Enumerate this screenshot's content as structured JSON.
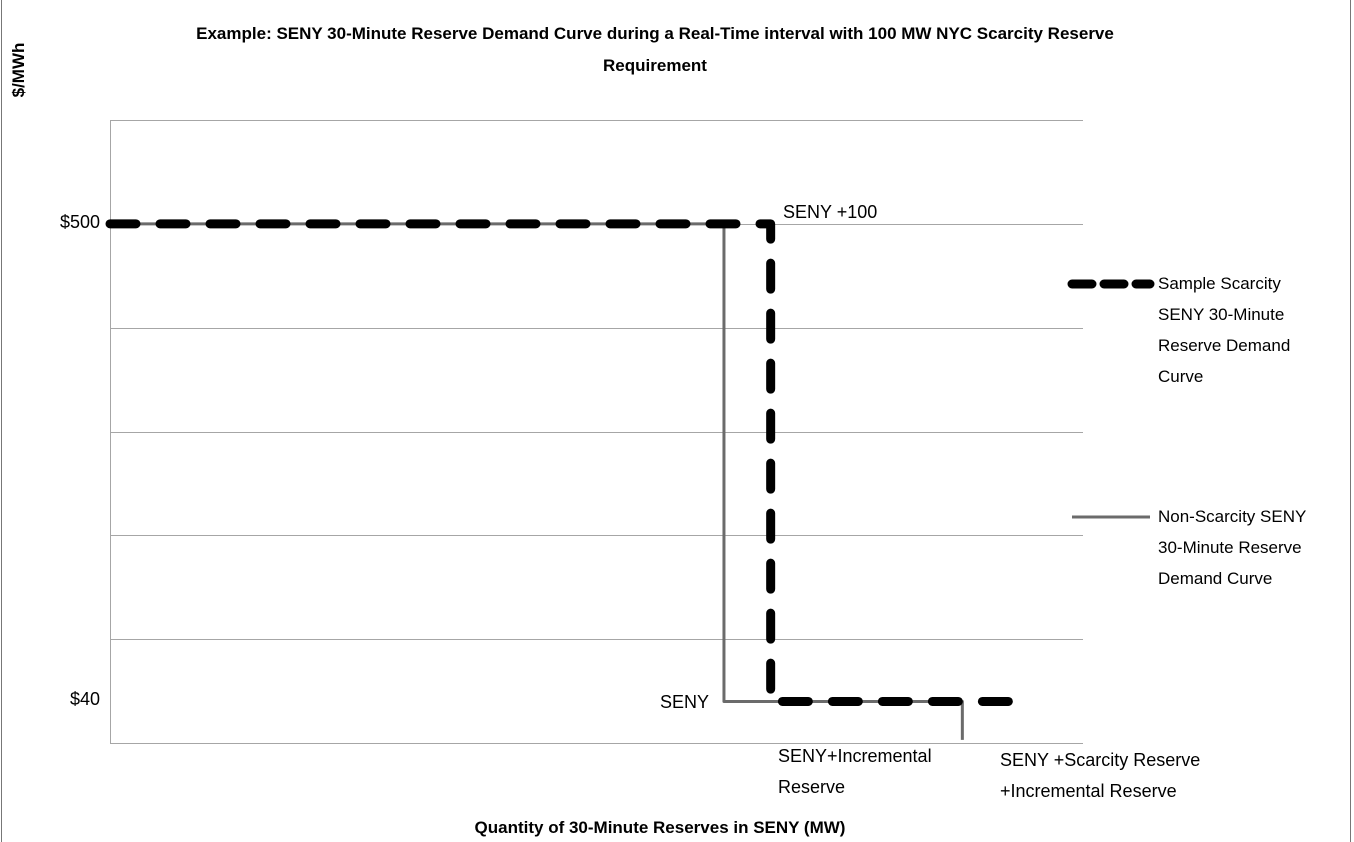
{
  "chart_data": {
    "type": "line",
    "title": "Example: SENY 30-Minute Reserve Demand Curve during a Real-Time interval with 100 MW NYC Scarcity Reserve Requirement",
    "ylabel": "$/MWh",
    "xlabel": "Quantity of 30-Minute Reserves in SENY (MW)",
    "xlim": [
      0,
      100
    ],
    "ylim": [
      0,
      600
    ],
    "yticks": [
      {
        "value": 500,
        "label": "$500"
      },
      {
        "value": 40,
        "label": "$40"
      }
    ],
    "ygrid": [
      0,
      100,
      200,
      300,
      400,
      500,
      600
    ],
    "grid": true,
    "legend": "right",
    "series": [
      {
        "name": "Sample Scarcity SENY 30-Minute Reserve Demand Curve",
        "color": "#000000",
        "style": "dashed",
        "x": [
          0,
          67.9,
          67.9,
          92.5,
          92.5
        ],
        "values": [
          500,
          500,
          40,
          40,
          22
        ]
      },
      {
        "name": "Non-Scarcity SENY 30-Minute Reserve Demand Curve",
        "color": "#6b6b6b",
        "style": "solid",
        "x": [
          0,
          63.1,
          63.1,
          87.6,
          87.6
        ],
        "values": [
          500,
          500,
          40,
          40,
          3
        ]
      }
    ],
    "annotations": [
      {
        "lines": [
          "SENY +100"
        ]
      },
      {
        "lines": [
          "SENY"
        ]
      },
      {
        "lines": [
          "SENY+Incremental",
          "Reserve"
        ]
      },
      {
        "lines": [
          "SENY +Scarcity Reserve",
          "+Incremental Reserve"
        ]
      }
    ]
  }
}
